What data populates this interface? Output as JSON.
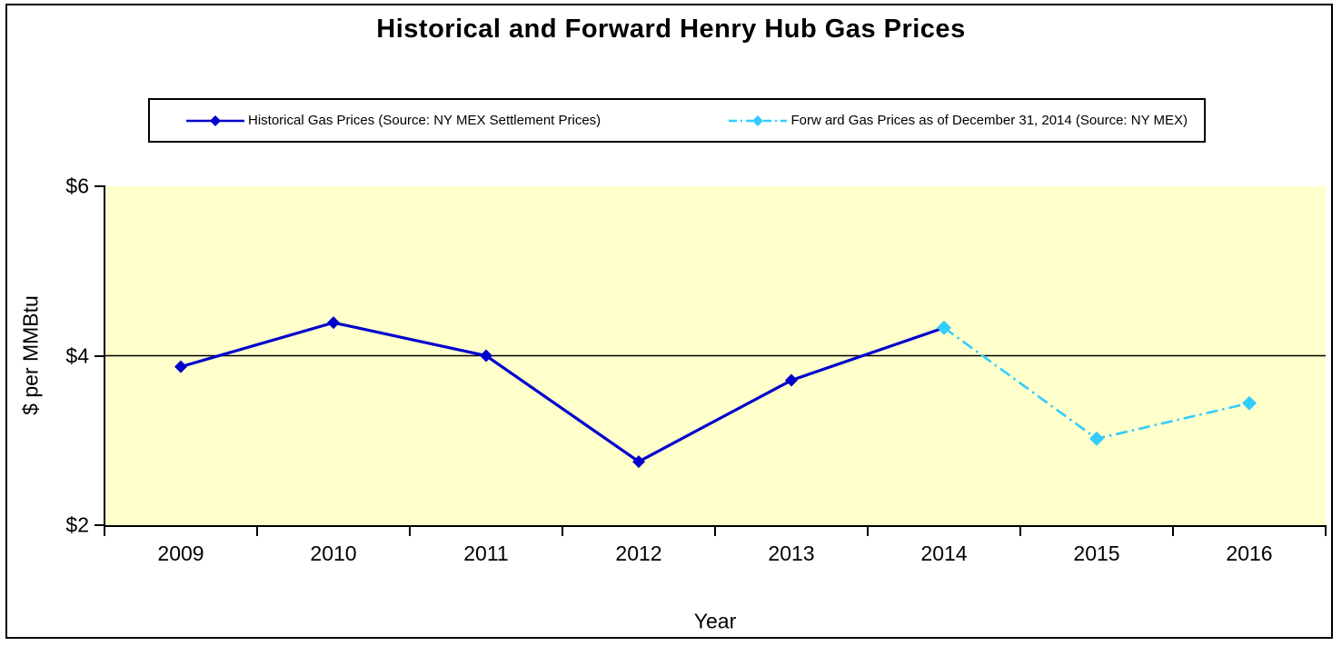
{
  "chart_data": {
    "type": "line",
    "title": "Historical and Forward Henry Hub Gas Prices",
    "xlabel": "Year",
    "ylabel": "$ per MMBtu",
    "categories": [
      "2009",
      "2010",
      "2011",
      "2012",
      "2013",
      "2014",
      "2015",
      "2016"
    ],
    "series": [
      {
        "name": "Historical Gas Prices (Source: NY MEX Settlement Prices)",
        "values": [
          3.87,
          4.39,
          4.0,
          2.75,
          3.71,
          4.33,
          null,
          null
        ],
        "color": "#0000CC",
        "line_style": "solid",
        "marker": "diamond"
      },
      {
        "name": "Forw ard Gas Prices as of December 31, 2014 (Source: NY MEX)",
        "values": [
          null,
          null,
          null,
          null,
          null,
          4.33,
          3.02,
          3.44
        ],
        "color": "#33CCFF",
        "line_style": "dash-dot",
        "marker": "diamond"
      }
    ],
    "ylim": [
      2,
      6
    ],
    "yticks": [
      2,
      4,
      6
    ],
    "ytick_labels": [
      "$2",
      "$4",
      "$6"
    ],
    "gridlines": [
      4
    ],
    "plot_background": "#FFFFCC",
    "legend_position": "top",
    "grid": "horizontal-major-only"
  }
}
